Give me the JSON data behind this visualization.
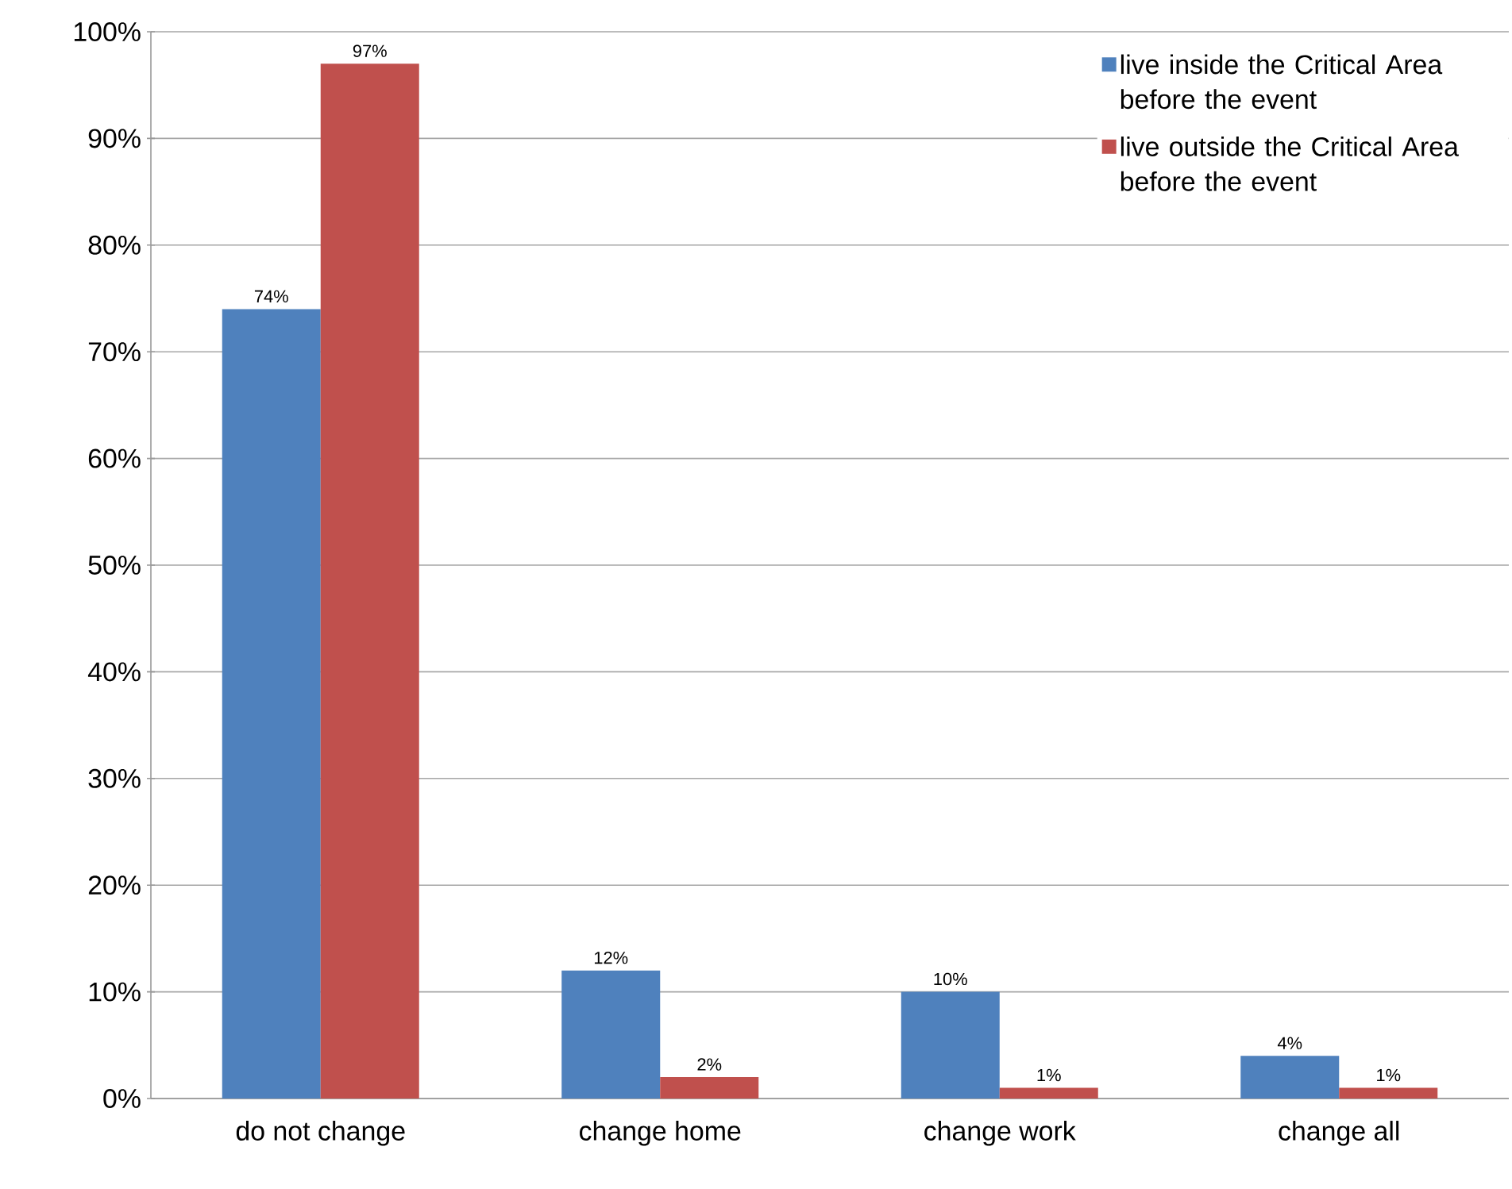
{
  "chart_data": {
    "type": "bar",
    "categories": [
      "do not change",
      "change home",
      "change work",
      "change all"
    ],
    "series": [
      {
        "name": "live inside the Critical Area before the event",
        "color": "#4f81bd",
        "values": [
          74,
          12,
          10,
          4
        ],
        "value_labels": [
          "74%",
          "12%",
          "10%",
          "4%"
        ]
      },
      {
        "name": "live outside the Critical Area before the event",
        "color": "#c0504d",
        "values": [
          97,
          2,
          1,
          1
        ],
        "value_labels": [
          "97%",
          "2%",
          "1%",
          "1%"
        ]
      }
    ],
    "ylim": [
      0,
      100
    ],
    "yticks": [
      {
        "value": 0,
        "label": "0%"
      },
      {
        "value": 10,
        "label": "10%"
      },
      {
        "value": 20,
        "label": "20%"
      },
      {
        "value": 30,
        "label": "30%"
      },
      {
        "value": 40,
        "label": "40%"
      },
      {
        "value": 50,
        "label": "50%"
      },
      {
        "value": 60,
        "label": "60%"
      },
      {
        "value": 70,
        "label": "70%"
      },
      {
        "value": 80,
        "label": "80%"
      },
      {
        "value": 90,
        "label": "90%"
      },
      {
        "value": 100,
        "label": "100%"
      }
    ],
    "grid": "y",
    "legend": "top right"
  }
}
